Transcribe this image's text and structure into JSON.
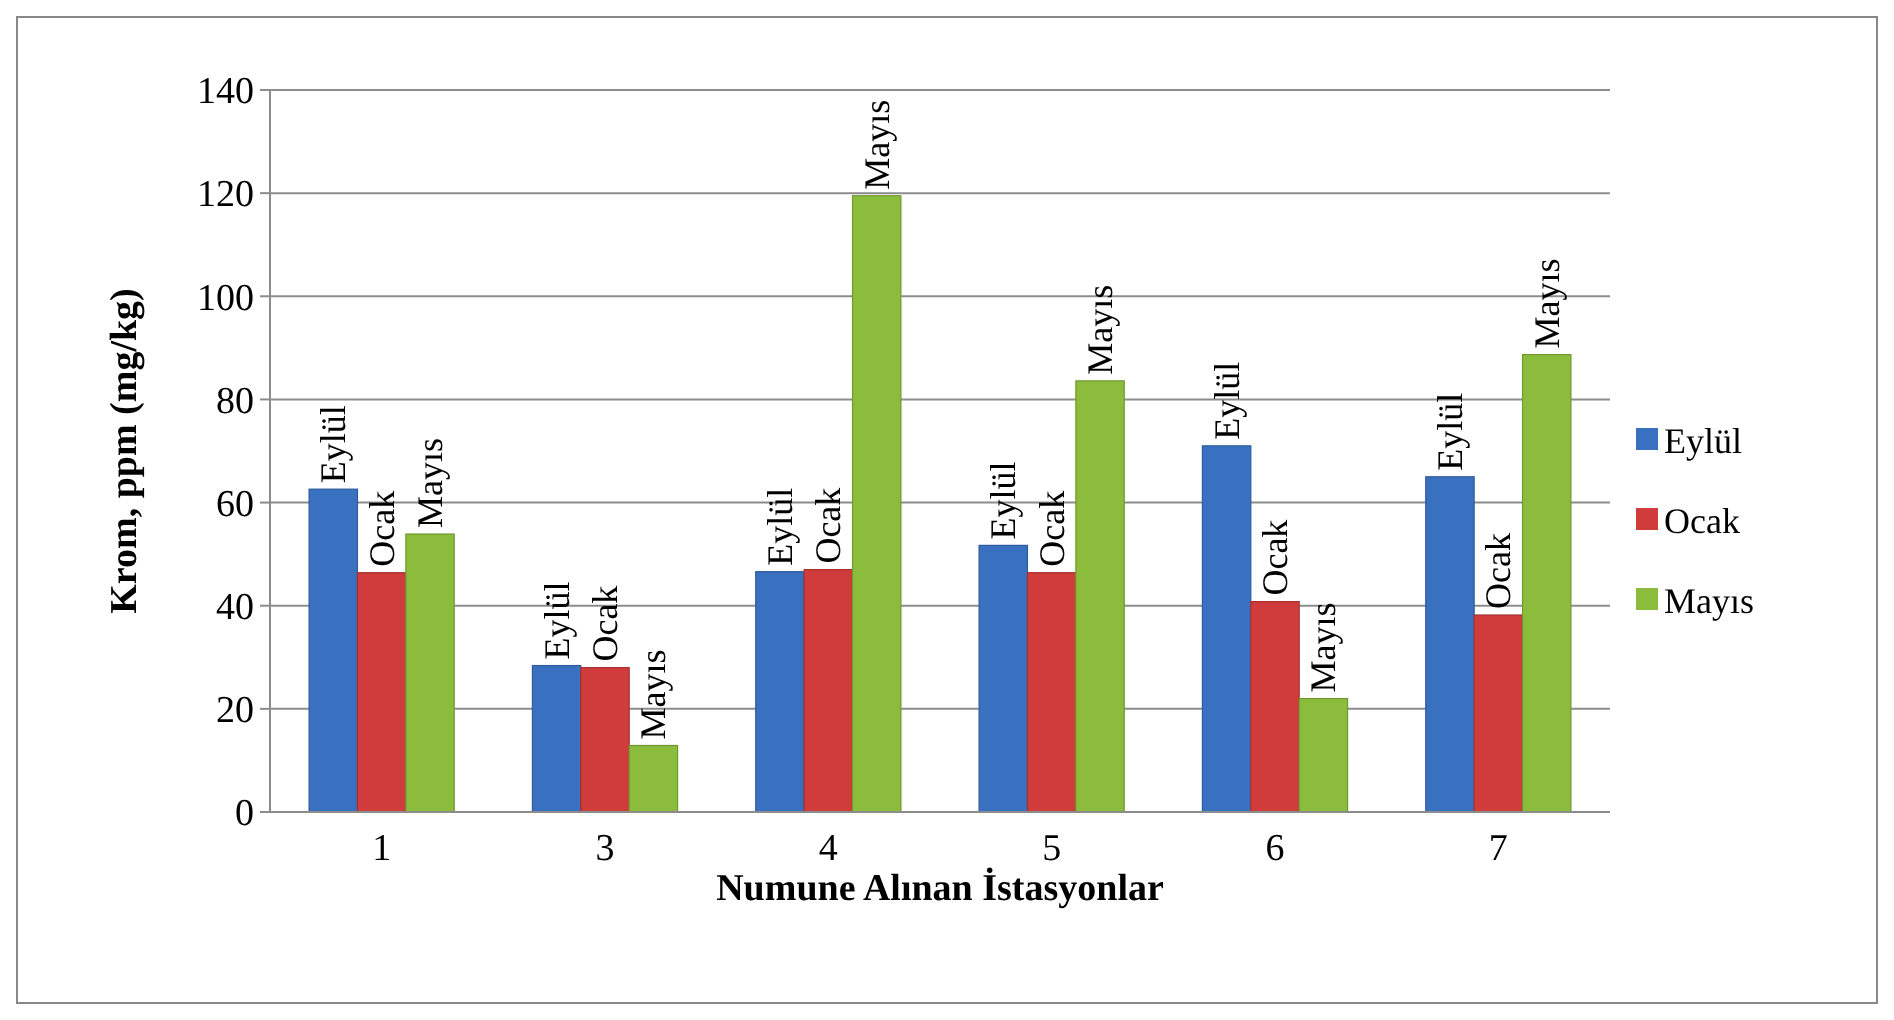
{
  "chart_data": {
    "type": "bar",
    "xlabel": "Numune Alınan İstasyonlar",
    "ylabel": "Krom, ppm (mg/kg)",
    "categories": [
      "1",
      "3",
      "4",
      "5",
      "6",
      "7"
    ],
    "series": [
      {
        "name": "Eylül",
        "color": "#3a70c0",
        "values": [
          62.6,
          28.4,
          46.6,
          51.7,
          71,
          65
        ]
      },
      {
        "name": "Ocak",
        "color": "#d03c3c",
        "values": [
          46.4,
          28,
          47,
          46.4,
          40.8,
          38.2
        ]
      },
      {
        "name": "Mayıs",
        "color": "#8cbc3c",
        "values": [
          53.9,
          12.9,
          119.5,
          83.6,
          22,
          88.7
        ]
      }
    ],
    "ylim": [
      0,
      140
    ],
    "yticks": [
      0,
      20,
      40,
      60,
      80,
      100,
      120,
      140
    ],
    "grid": "y",
    "legend": "right",
    "annotations": [
      "Eylül",
      "Ocak",
      "Mayıs",
      "Eylül",
      "Ocak",
      "Mayıs",
      "Eylül",
      "Ocak",
      "Mayıs",
      "Eylül",
      "Ocak",
      "Mayıs",
      "Eylül",
      "Ocak",
      "Mayıs",
      "Eylül",
      "Ocak",
      "Mayıs"
    ]
  }
}
